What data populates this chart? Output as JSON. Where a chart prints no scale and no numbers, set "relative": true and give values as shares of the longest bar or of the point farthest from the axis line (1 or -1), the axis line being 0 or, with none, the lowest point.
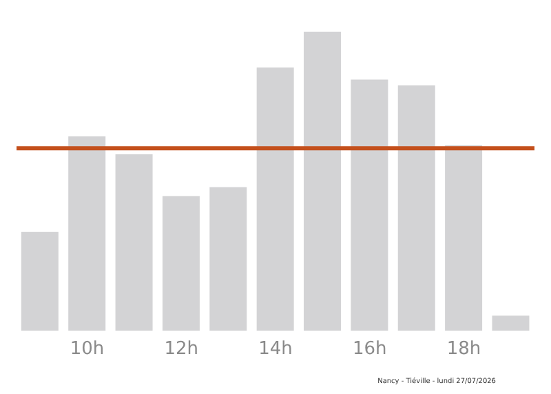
{
  "chart_data": {
    "type": "bar",
    "relative": true,
    "categories": [
      null,
      "10h",
      null,
      "12h",
      null,
      "14h",
      null,
      "16h",
      null,
      "18h",
      null
    ],
    "values": [
      0.33,
      0.65,
      0.59,
      0.45,
      0.48,
      0.88,
      1,
      0.84,
      0.82,
      0.62,
      0.05
    ],
    "color": "#d3d3d5",
    "ref_lines": [
      {
        "axis": "y",
        "value": 0.61,
        "color": "#c4501c"
      }
    ],
    "annotations": [
      "Nancy - Tiéville - lundi 27/07/2026"
    ],
    "grid": false
  }
}
